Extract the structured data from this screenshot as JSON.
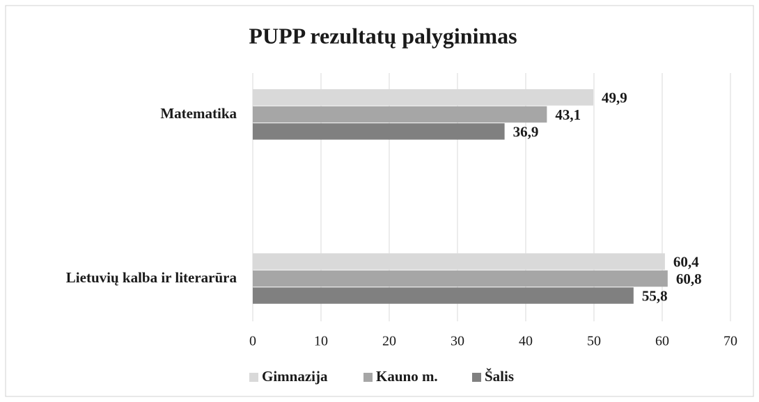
{
  "chart_data": {
    "type": "bar",
    "orientation": "horizontal",
    "title": "PUPP rezultatų palyginimas",
    "categories": [
      "Matematika",
      "Lietuvių kalba ir literarūra"
    ],
    "series": [
      {
        "name": "Gimnazija",
        "color": "#d9d9d9",
        "values": [
          49.9,
          60.4
        ],
        "value_labels": [
          "49,9",
          "60,4"
        ]
      },
      {
        "name": "Kauno m.",
        "color": "#a6a6a6",
        "values": [
          43.1,
          60.8
        ],
        "value_labels": [
          "43,1",
          "60,8"
        ]
      },
      {
        "name": "Šalis",
        "color": "#808080",
        "values": [
          36.9,
          55.8
        ],
        "value_labels": [
          "36,9",
          "55,8"
        ]
      }
    ],
    "xlim": [
      0,
      70
    ],
    "xticks": [
      0,
      10,
      20,
      30,
      40,
      50,
      60,
      70
    ],
    "grid": true,
    "legend": "bottom"
  }
}
